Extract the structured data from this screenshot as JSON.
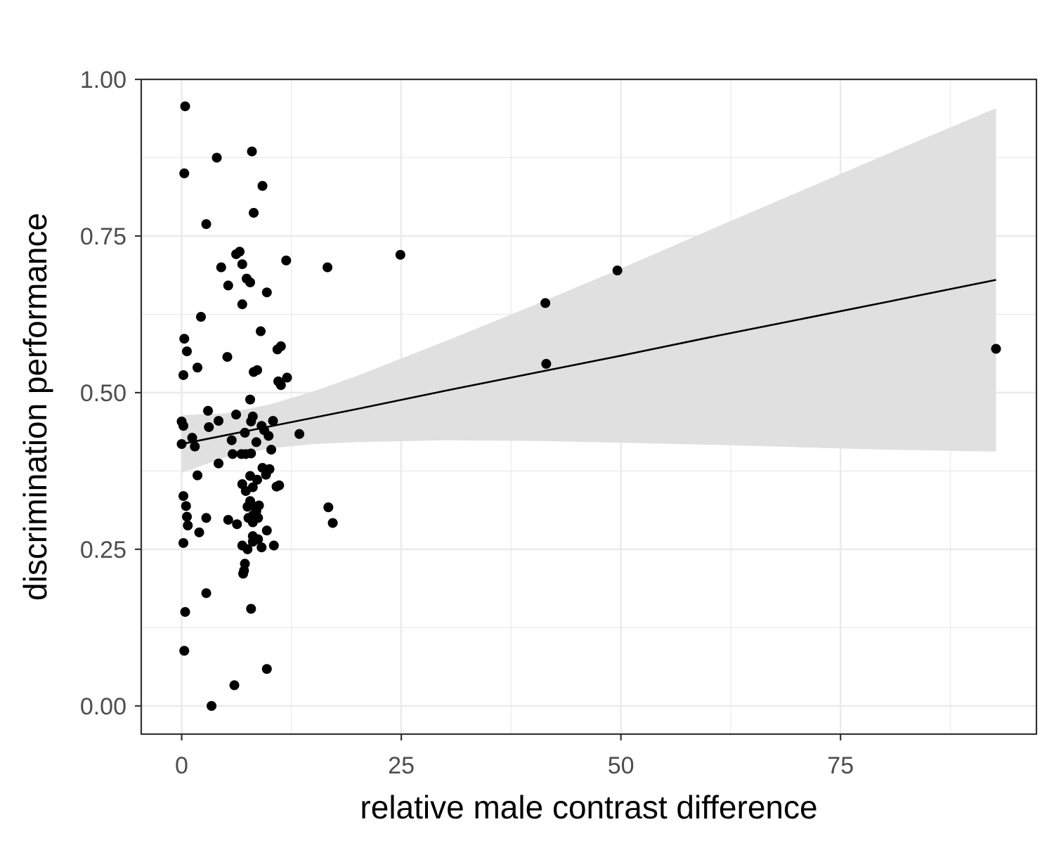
{
  "chart_data": {
    "type": "scatter",
    "xlabel": "relative male contrast difference",
    "ylabel": "discrimination performance",
    "xlim": [
      -4.6,
      97.3
    ],
    "ylim": [
      -0.045,
      1.0
    ],
    "x_ticks": [
      0,
      25,
      50,
      75
    ],
    "x_tick_labels": [
      "0",
      "25",
      "50",
      "75"
    ],
    "y_ticks": [
      0.0,
      0.25,
      0.5,
      0.75,
      1.0
    ],
    "y_tick_labels": [
      "0.00",
      "0.25",
      "0.50",
      "0.75",
      "1.00"
    ],
    "grid": true,
    "legend": "none",
    "colors": {
      "points": "#000000",
      "fit_line": "#000000",
      "ribbon": "#e0e0e0",
      "grid": "#ebebeb",
      "panel_border": "#333333"
    },
    "fit": {
      "method": "linear",
      "x": [
        0,
        5,
        10,
        15,
        20,
        30,
        40,
        50,
        60,
        70,
        80,
        92.7
      ],
      "y": [
        0.418,
        0.432,
        0.446,
        0.46,
        0.474,
        0.503,
        0.531,
        0.559,
        0.588,
        0.616,
        0.644,
        0.68
      ],
      "lower": [
        0.372,
        0.397,
        0.411,
        0.418,
        0.421,
        0.424,
        0.423,
        0.42,
        0.417,
        0.413,
        0.409,
        0.406
      ],
      "upper": [
        0.464,
        0.467,
        0.481,
        0.502,
        0.527,
        0.582,
        0.639,
        0.698,
        0.759,
        0.819,
        0.879,
        0.954
      ]
    },
    "points": [
      {
        "x": 0.4,
        "y": 0.957
      },
      {
        "x": 4.0,
        "y": 0.875
      },
      {
        "x": 8.0,
        "y": 0.885
      },
      {
        "x": 0.3,
        "y": 0.85
      },
      {
        "x": 9.2,
        "y": 0.83
      },
      {
        "x": 8.2,
        "y": 0.787
      },
      {
        "x": 2.8,
        "y": 0.769
      },
      {
        "x": 6.2,
        "y": 0.721
      },
      {
        "x": 6.6,
        "y": 0.725
      },
      {
        "x": 6.9,
        "y": 0.705
      },
      {
        "x": 11.9,
        "y": 0.711
      },
      {
        "x": 4.5,
        "y": 0.7
      },
      {
        "x": 16.6,
        "y": 0.7
      },
      {
        "x": 24.9,
        "y": 0.72
      },
      {
        "x": 7.4,
        "y": 0.682
      },
      {
        "x": 7.8,
        "y": 0.676
      },
      {
        "x": 5.3,
        "y": 0.671
      },
      {
        "x": 9.7,
        "y": 0.66
      },
      {
        "x": 6.9,
        "y": 0.641
      },
      {
        "x": 2.2,
        "y": 0.621
      },
      {
        "x": 9.0,
        "y": 0.598
      },
      {
        "x": 0.3,
        "y": 0.586
      },
      {
        "x": 0.6,
        "y": 0.566
      },
      {
        "x": 11.3,
        "y": 0.574
      },
      {
        "x": 10.9,
        "y": 0.569
      },
      {
        "x": 5.2,
        "y": 0.557
      },
      {
        "x": 1.8,
        "y": 0.54
      },
      {
        "x": 8.6,
        "y": 0.536
      },
      {
        "x": 8.2,
        "y": 0.533
      },
      {
        "x": 0.2,
        "y": 0.528
      },
      {
        "x": 12.0,
        "y": 0.524
      },
      {
        "x": 11.0,
        "y": 0.518
      },
      {
        "x": 11.3,
        "y": 0.512
      },
      {
        "x": 7.8,
        "y": 0.489
      },
      {
        "x": 3.0,
        "y": 0.471
      },
      {
        "x": 6.2,
        "y": 0.465
      },
      {
        "x": 8.1,
        "y": 0.462
      },
      {
        "x": 7.9,
        "y": 0.454
      },
      {
        "x": 0.0,
        "y": 0.454
      },
      {
        "x": 4.2,
        "y": 0.455
      },
      {
        "x": 10.4,
        "y": 0.455
      },
      {
        "x": 0.2,
        "y": 0.447
      },
      {
        "x": 3.1,
        "y": 0.445
      },
      {
        "x": 9.1,
        "y": 0.447
      },
      {
        "x": 9.4,
        "y": 0.44
      },
      {
        "x": 7.2,
        "y": 0.436
      },
      {
        "x": 13.4,
        "y": 0.434
      },
      {
        "x": 9.9,
        "y": 0.431
      },
      {
        "x": 1.2,
        "y": 0.428
      },
      {
        "x": 5.7,
        "y": 0.424
      },
      {
        "x": 8.5,
        "y": 0.421
      },
      {
        "x": 0.0,
        "y": 0.418
      },
      {
        "x": 1.5,
        "y": 0.414
      },
      {
        "x": 10.2,
        "y": 0.409
      },
      {
        "x": 5.8,
        "y": 0.402
      },
      {
        "x": 6.8,
        "y": 0.402
      },
      {
        "x": 7.3,
        "y": 0.402
      },
      {
        "x": 7.9,
        "y": 0.403
      },
      {
        "x": 4.2,
        "y": 0.387
      },
      {
        "x": 9.2,
        "y": 0.38
      },
      {
        "x": 10.0,
        "y": 0.378
      },
      {
        "x": 9.6,
        "y": 0.369
      },
      {
        "x": 7.8,
        "y": 0.367
      },
      {
        "x": 1.8,
        "y": 0.368
      },
      {
        "x": 8.6,
        "y": 0.361
      },
      {
        "x": 6.9,
        "y": 0.354
      },
      {
        "x": 7.3,
        "y": 0.343
      },
      {
        "x": 8.1,
        "y": 0.349
      },
      {
        "x": 10.8,
        "y": 0.35
      },
      {
        "x": 11.1,
        "y": 0.352
      },
      {
        "x": 0.2,
        "y": 0.335
      },
      {
        "x": 7.8,
        "y": 0.327
      },
      {
        "x": 8.0,
        "y": 0.32
      },
      {
        "x": 7.5,
        "y": 0.318
      },
      {
        "x": 8.8,
        "y": 0.32
      },
      {
        "x": 16.7,
        "y": 0.317
      },
      {
        "x": 0.5,
        "y": 0.319
      },
      {
        "x": 8.5,
        "y": 0.311
      },
      {
        "x": 8.1,
        "y": 0.304
      },
      {
        "x": 7.6,
        "y": 0.3
      },
      {
        "x": 8.7,
        "y": 0.3
      },
      {
        "x": 2.8,
        "y": 0.3
      },
      {
        "x": 0.6,
        "y": 0.302
      },
      {
        "x": 5.3,
        "y": 0.297
      },
      {
        "x": 8.1,
        "y": 0.293
      },
      {
        "x": 6.3,
        "y": 0.29
      },
      {
        "x": 0.7,
        "y": 0.288
      },
      {
        "x": 17.2,
        "y": 0.292
      },
      {
        "x": 9.7,
        "y": 0.28
      },
      {
        "x": 2.0,
        "y": 0.277
      },
      {
        "x": 8.1,
        "y": 0.271
      },
      {
        "x": 8.7,
        "y": 0.266
      },
      {
        "x": 8.1,
        "y": 0.262
      },
      {
        "x": 0.2,
        "y": 0.26
      },
      {
        "x": 6.9,
        "y": 0.256
      },
      {
        "x": 10.5,
        "y": 0.256
      },
      {
        "x": 9.1,
        "y": 0.253
      },
      {
        "x": 7.5,
        "y": 0.25
      },
      {
        "x": 7.2,
        "y": 0.227
      },
      {
        "x": 7.1,
        "y": 0.216
      },
      {
        "x": 7.0,
        "y": 0.211
      },
      {
        "x": 2.8,
        "y": 0.18
      },
      {
        "x": 7.9,
        "y": 0.155
      },
      {
        "x": 0.4,
        "y": 0.15
      },
      {
        "x": 0.3,
        "y": 0.088
      },
      {
        "x": 9.7,
        "y": 0.059
      },
      {
        "x": 6.0,
        "y": 0.033
      },
      {
        "x": 3.4,
        "y": 0.0
      },
      {
        "x": 41.4,
        "y": 0.643
      },
      {
        "x": 41.5,
        "y": 0.546
      },
      {
        "x": 49.6,
        "y": 0.695
      },
      {
        "x": 92.7,
        "y": 0.57
      }
    ]
  }
}
